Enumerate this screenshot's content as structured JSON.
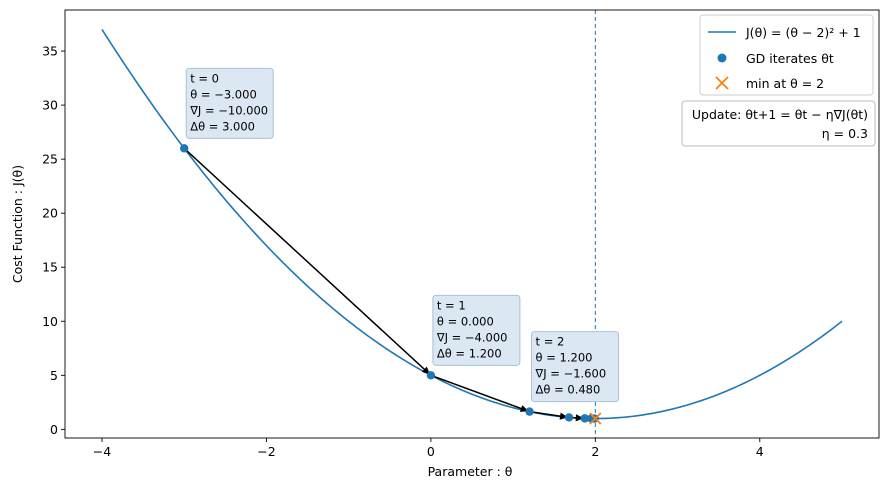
{
  "chart_data": {
    "type": "line",
    "xlabel": "Parameter : θ",
    "ylabel": "Cost Function : J(θ)",
    "xlim": [
      -4.45,
      5.45
    ],
    "ylim": [
      -0.8,
      38.8
    ],
    "xticks": [
      {
        "value": -4,
        "label": "−4"
      },
      {
        "value": -2,
        "label": "−2"
      },
      {
        "value": 0,
        "label": "0"
      },
      {
        "value": 2,
        "label": "2"
      },
      {
        "value": 4,
        "label": "4"
      }
    ],
    "yticks": [
      {
        "value": 0,
        "label": "0"
      },
      {
        "value": 5,
        "label": "5"
      },
      {
        "value": 10,
        "label": "10"
      },
      {
        "value": 15,
        "label": "15"
      },
      {
        "value": 20,
        "label": "20"
      },
      {
        "value": 25,
        "label": "25"
      },
      {
        "value": 30,
        "label": "30"
      },
      {
        "value": 35,
        "label": "35"
      }
    ],
    "curve": {
      "name": "J(θ) = (θ − 2)² + 1",
      "x_range": [
        -4,
        5
      ],
      "color": "#1f77b4"
    },
    "iterates": {
      "name": "GD iterates θt",
      "color": "#1f77b4",
      "points": [
        {
          "x": -3.0,
          "y": 26.0
        },
        {
          "x": 0.0,
          "y": 5.0
        },
        {
          "x": 1.2,
          "y": 1.64
        },
        {
          "x": 1.68,
          "y": 1.1024
        },
        {
          "x": 1.872,
          "y": 1.0164
        },
        {
          "x": 1.9488,
          "y": 1.0026
        },
        {
          "x": 1.9795,
          "y": 1.0004
        },
        {
          "x": 1.9918,
          "y": 1.0001
        }
      ]
    },
    "minimum": {
      "name": "min at θ = 2",
      "x": 2,
      "y": 1,
      "color": "#ff7f0e"
    },
    "vline_x": 2,
    "annotations": [
      {
        "lines": [
          "t = 0",
          "θ = −3.000",
          "∇J = −10.000",
          "Δθ = 3.000"
        ],
        "anchor": {
          "x": -3.0,
          "y": 26.0
        }
      },
      {
        "lines": [
          "t = 1",
          "θ = 0.000",
          "∇J = −4.000",
          "Δθ = 1.200"
        ],
        "anchor": {
          "x": 0.0,
          "y": 5.0
        }
      },
      {
        "lines": [
          "t = 2",
          "θ = 1.200",
          "∇J = −1.600",
          "Δθ = 0.480"
        ],
        "anchor": {
          "x": 1.2,
          "y": 1.64
        }
      }
    ],
    "update_note": {
      "line1": "Update: θt+1 = θt − η∇J(θt)",
      "line2": "η = 0.3"
    },
    "legend": {
      "position": "top-right",
      "entries": [
        "J(θ) = (θ − 2)² + 1",
        "GD iterates θt",
        "min at θ = 2"
      ]
    }
  }
}
